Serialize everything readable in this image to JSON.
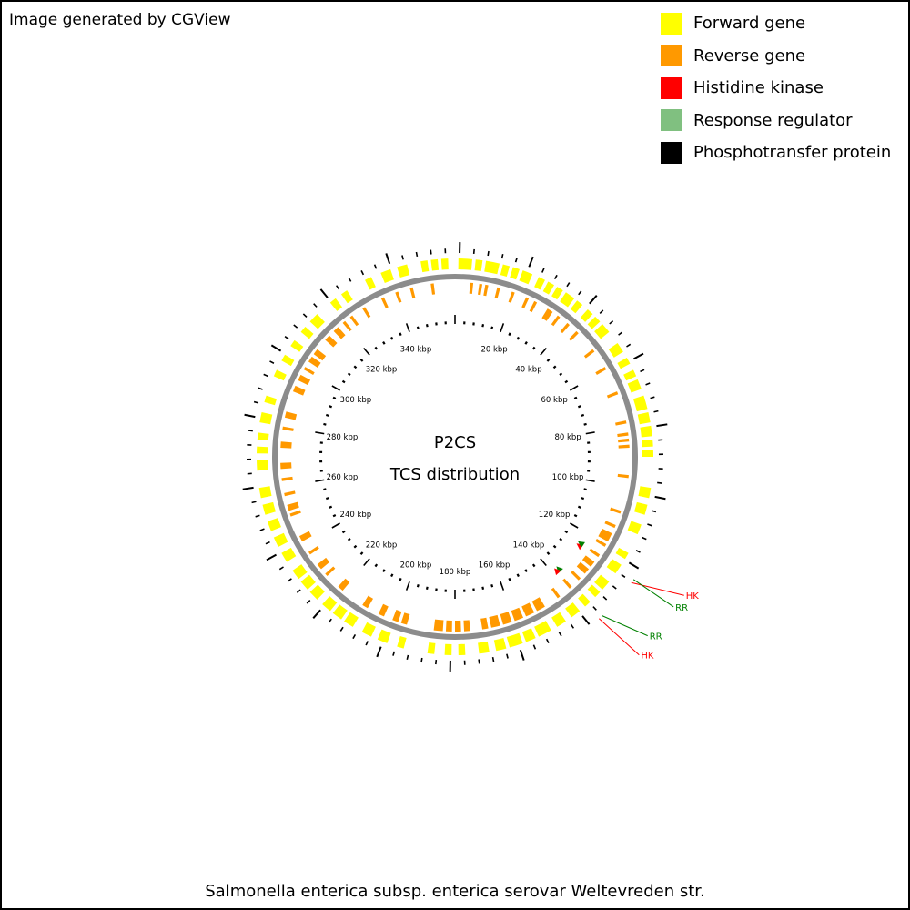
{
  "credit": "Image generated by CGView",
  "legend": [
    {
      "label": "Forward gene",
      "color": "#ffff00"
    },
    {
      "label": "Reverse gene",
      "color": "#ff9900"
    },
    {
      "label": "Histidine kinase",
      "color": "#ff0000"
    },
    {
      "label": "Response regulator",
      "color": "#80c080"
    },
    {
      "label": "Phosphotransfer protein",
      "color": "#000000"
    }
  ],
  "map": {
    "title_line1": "P2CS",
    "title_line2": "TCS distribution",
    "organism": "Salmonella enterica subsp. enterica serovar Weltevreden str.",
    "sequence_length_kbp": 360,
    "backbone_color": "#8c8c8c",
    "tick_interval_kbp": 4,
    "label_interval_kbp": 20,
    "tick_labels": [
      "20 kbp",
      "40 kbp",
      "60 kbp",
      "80 kbp",
      "100 kbp",
      "120 kbp",
      "140 kbp",
      "160 kbp",
      "180 kbp",
      "200 kbp",
      "220 kbp",
      "240 kbp",
      "260 kbp",
      "280 kbp",
      "300 kbp",
      "320 kbp",
      "340 kbp"
    ],
    "forward_genes": [
      [
        1,
        5
      ],
      [
        6,
        8
      ],
      [
        9,
        13
      ],
      [
        14,
        16
      ],
      [
        17,
        19
      ],
      [
        20,
        23
      ],
      [
        25,
        27
      ],
      [
        28,
        30
      ],
      [
        31,
        33
      ],
      [
        34,
        37
      ],
      [
        38,
        40
      ],
      [
        42,
        44
      ],
      [
        45,
        47
      ],
      [
        48,
        51
      ],
      [
        55,
        58
      ],
      [
        60,
        62
      ],
      [
        64,
        66
      ],
      [
        67,
        70
      ],
      [
        72,
        76
      ],
      [
        77,
        80
      ],
      [
        81,
        84
      ],
      [
        85,
        87
      ],
      [
        88,
        90
      ],
      [
        99,
        102
      ],
      [
        104,
        107
      ],
      [
        110,
        113
      ],
      [
        119,
        121
      ],
      [
        123,
        126
      ],
      [
        129,
        132
      ],
      [
        133,
        135
      ],
      [
        137,
        139
      ],
      [
        141,
        144
      ],
      [
        146,
        149
      ],
      [
        151,
        155
      ],
      [
        156,
        159
      ],
      [
        160,
        164
      ],
      [
        165,
        168
      ],
      [
        170,
        173
      ],
      [
        177,
        179
      ],
      [
        181,
        183
      ],
      [
        186,
        188
      ],
      [
        195,
        197
      ],
      [
        200,
        203
      ],
      [
        205,
        208
      ],
      [
        211,
        214
      ],
      [
        215,
        218
      ],
      [
        219,
        222
      ],
      [
        224,
        227
      ],
      [
        228,
        231
      ],
      [
        232,
        235
      ],
      [
        238,
        241
      ],
      [
        243,
        246
      ],
      [
        248,
        251
      ],
      [
        253,
        256
      ],
      [
        258,
        261
      ],
      [
        266,
        269
      ],
      [
        271,
        273
      ],
      [
        275,
        277
      ],
      [
        280,
        283
      ],
      [
        286,
        288
      ],
      [
        294,
        296
      ],
      [
        299,
        301
      ],
      [
        304,
        306
      ],
      [
        309,
        311
      ],
      [
        313,
        316
      ],
      [
        321,
        323
      ],
      [
        325,
        327
      ],
      [
        333,
        335
      ],
      [
        338,
        341
      ],
      [
        343,
        346
      ],
      [
        350,
        352
      ],
      [
        353,
        355
      ],
      [
        356,
        358
      ]
    ],
    "reverse_genes": [
      [
        5,
        6
      ],
      [
        8,
        9
      ],
      [
        10,
        11
      ],
      [
        14,
        15
      ],
      [
        19,
        20
      ],
      [
        24,
        25
      ],
      [
        27,
        28
      ],
      [
        32,
        34
      ],
      [
        36,
        37
      ],
      [
        40,
        41
      ],
      [
        44,
        45
      ],
      [
        52,
        53
      ],
      [
        59,
        60
      ],
      [
        68,
        69
      ],
      [
        78,
        79
      ],
      [
        82,
        83
      ],
      [
        84,
        85
      ],
      [
        86,
        87
      ],
      [
        96,
        97
      ],
      [
        108,
        109
      ],
      [
        113,
        114
      ],
      [
        116,
        119
      ],
      [
        120,
        121
      ],
      [
        124,
        125
      ],
      [
        127,
        129
      ],
      [
        130,
        132
      ],
      [
        134,
        135
      ],
      [
        138,
        139
      ],
      [
        143,
        144
      ],
      [
        149,
        152
      ],
      [
        153,
        156
      ],
      [
        157,
        160
      ],
      [
        161,
        164
      ],
      [
        165,
        168
      ],
      [
        169,
        171
      ],
      [
        175,
        177
      ],
      [
        178,
        180
      ],
      [
        181,
        183
      ],
      [
        184,
        187
      ],
      [
        196,
        198
      ],
      [
        199,
        201
      ],
      [
        204,
        206
      ],
      [
        210,
        212
      ],
      [
        220,
        222
      ],
      [
        227,
        228
      ],
      [
        230,
        232
      ],
      [
        236,
        237
      ],
      [
        241,
        243
      ],
      [
        250,
        251
      ],
      [
        252,
        254
      ],
      [
        257,
        258
      ],
      [
        262,
        263
      ],
      [
        266,
        268
      ],
      [
        273,
        275
      ],
      [
        279,
        280
      ],
      [
        283,
        285
      ],
      [
        292,
        294
      ],
      [
        296,
        298
      ],
      [
        300,
        301
      ],
      [
        303,
        305
      ],
      [
        306,
        308
      ],
      [
        312,
        314
      ],
      [
        316,
        318
      ],
      [
        320,
        321
      ],
      [
        323,
        324
      ],
      [
        328,
        329
      ],
      [
        335,
        336
      ],
      [
        340,
        341
      ],
      [
        345,
        346
      ],
      [
        352,
        353
      ]
    ],
    "tcs_genes": [
      {
        "label": "HK",
        "type": "Histidine kinase",
        "position_kbp": 125.5,
        "label_color": "#ff0000"
      },
      {
        "label": "RR",
        "type": "Response regulator",
        "position_kbp": 124.5,
        "label_color": "#008000"
      },
      {
        "label": "RR",
        "type": "Response regulator",
        "position_kbp": 137.2,
        "label_color": "#008000"
      },
      {
        "label": "HK",
        "type": "Histidine kinase",
        "position_kbp": 138.3,
        "label_color": "#ff0000"
      }
    ]
  }
}
